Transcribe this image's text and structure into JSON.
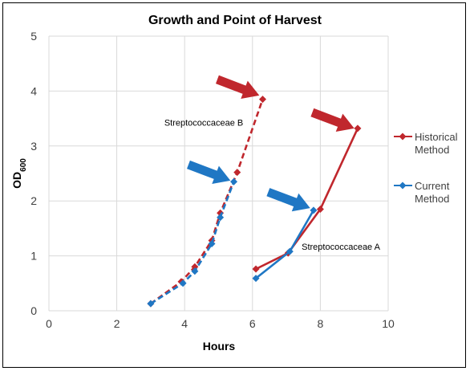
{
  "chart_data": {
    "type": "line",
    "title": "Growth and Point of Harvest",
    "xlabel": "Hours",
    "ylabel_main": "OD",
    "ylabel_sub": "600",
    "xlim": [
      0,
      10
    ],
    "ylim": [
      0,
      5
    ],
    "xticks": [
      0,
      2,
      4,
      6,
      8,
      10
    ],
    "yticks": [
      0,
      1,
      2,
      3,
      4,
      5
    ],
    "grid": true,
    "legend_position": "right",
    "legend": [
      {
        "line1": "Historical",
        "line2": "Method",
        "color": "#c0272d"
      },
      {
        "line1": "Current",
        "line2": "Method",
        "color": "#1f77c4"
      }
    ],
    "series": [
      {
        "name": "Historical Method",
        "group": "Streptococcaceae B",
        "style": "dashed",
        "color": "#c0272d",
        "x": [
          3.0,
          3.9,
          4.3,
          4.8,
          5.05,
          5.55,
          6.3
        ],
        "y": [
          0.13,
          0.53,
          0.8,
          1.28,
          1.78,
          2.52,
          3.85
        ]
      },
      {
        "name": "Current Method",
        "group": "Streptococcaceae B",
        "style": "dashed",
        "color": "#1f77c4",
        "x": [
          3.0,
          3.95,
          4.3,
          4.8,
          5.05,
          5.45
        ],
        "y": [
          0.13,
          0.5,
          0.72,
          1.22,
          1.7,
          2.35
        ]
      },
      {
        "name": "Historical Method",
        "group": "Streptococcaceae A",
        "style": "solid",
        "color": "#c0272d",
        "x": [
          6.1,
          7.05,
          8.0,
          9.1
        ],
        "y": [
          0.76,
          1.05,
          1.85,
          3.32
        ]
      },
      {
        "name": "Current Method",
        "group": "Streptococcaceae A",
        "style": "solid",
        "color": "#1f77c4",
        "x": [
          6.1,
          7.1,
          7.8
        ],
        "y": [
          0.59,
          1.08,
          1.83
        ]
      }
    ],
    "annotations": [
      {
        "text": "Streptococcaceae B",
        "x": 3.4,
        "y": 3.43
      },
      {
        "text": "Streptococcaceae A",
        "x": 7.45,
        "y": 1.17
      }
    ],
    "arrows": [
      {
        "color": "#c0272d",
        "tip_x": 6.2,
        "tip_y": 3.92
      },
      {
        "color": "#c0272d",
        "tip_x": 9.0,
        "tip_y": 3.32
      },
      {
        "color": "#1f77c4",
        "tip_x": 5.35,
        "tip_y": 2.37
      },
      {
        "color": "#1f77c4",
        "tip_x": 7.7,
        "tip_y": 1.87
      }
    ]
  }
}
